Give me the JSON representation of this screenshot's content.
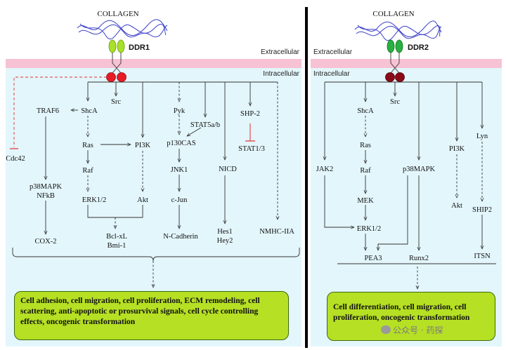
{
  "left_panel": {
    "ligand": "COLLAGEN",
    "receptor": "DDR1",
    "extracellular_label": "Extracellular",
    "intracellular_label": "Intracellular",
    "nodes": {
      "src": "Src",
      "cdc42": "Cdc42",
      "traf6": "TRAF6",
      "shca": "ShcA",
      "ras": "Ras",
      "pi3k": "PI3K",
      "raf": "Raf",
      "erk": "ERK1/2",
      "akt": "Akt",
      "p38": "p38MAPK",
      "nfkb": "NFkB",
      "cox2": "COX-2",
      "bclxl": "Bcl-xL",
      "bmi1": "Bmi-1",
      "pyk": "Pyk",
      "stat5": "STAT5a/b",
      "p130": "p130CAS",
      "jnk1": "JNK1",
      "cjun": "c-Jun",
      "ncad": "N-Cadherin",
      "shp2": "SHP-2",
      "stat13": "STAT1/3",
      "nicd": "NICD",
      "hes1": "Hes1",
      "hey2": "Hey2",
      "nmhc": "NMHC-IIA"
    },
    "outcome": "Cell adhesion, cell migration, cell proliferation, ECM remodeling, cell scattering, anti-apoptotic or prosurvival signals, cell cycle controlling effects, oncogenic transformation"
  },
  "right_panel": {
    "ligand": "COLLAGEN",
    "receptor": "DDR2",
    "extracellular_label": "Extracellular",
    "intracellular_label": "Intracellular",
    "nodes": {
      "src": "Src",
      "shca": "ShcA",
      "ras": "Ras",
      "raf": "Raf",
      "mek": "MEK",
      "erk": "ERK1/2",
      "jak2": "JAK2",
      "p38": "p38MAPK",
      "pi3k": "PI3K",
      "akt": "Akt",
      "lyn": "Lyn",
      "ship2": "SHIP2",
      "itsn": "ITSN",
      "pea3": "PEA3",
      "runx2": "Runx2"
    },
    "outcome": "Cell differentiation, cell migration, cell proliferation, oncogenic transformation"
  },
  "watermark": "公众号 · 药探",
  "colors": {
    "membrane": "#f7c2d3",
    "cytoplasm": "#e3f6fb",
    "outcome_fill": "#b6e024",
    "collagen": "#3a3fc8",
    "ddr1_receptor": "#a8e02a",
    "ddr2_receptor": "#28b040",
    "ddr1_kinase": "#e81c24",
    "ddr2_kinase": "#8a0a18",
    "inhibition": "#e03030"
  }
}
